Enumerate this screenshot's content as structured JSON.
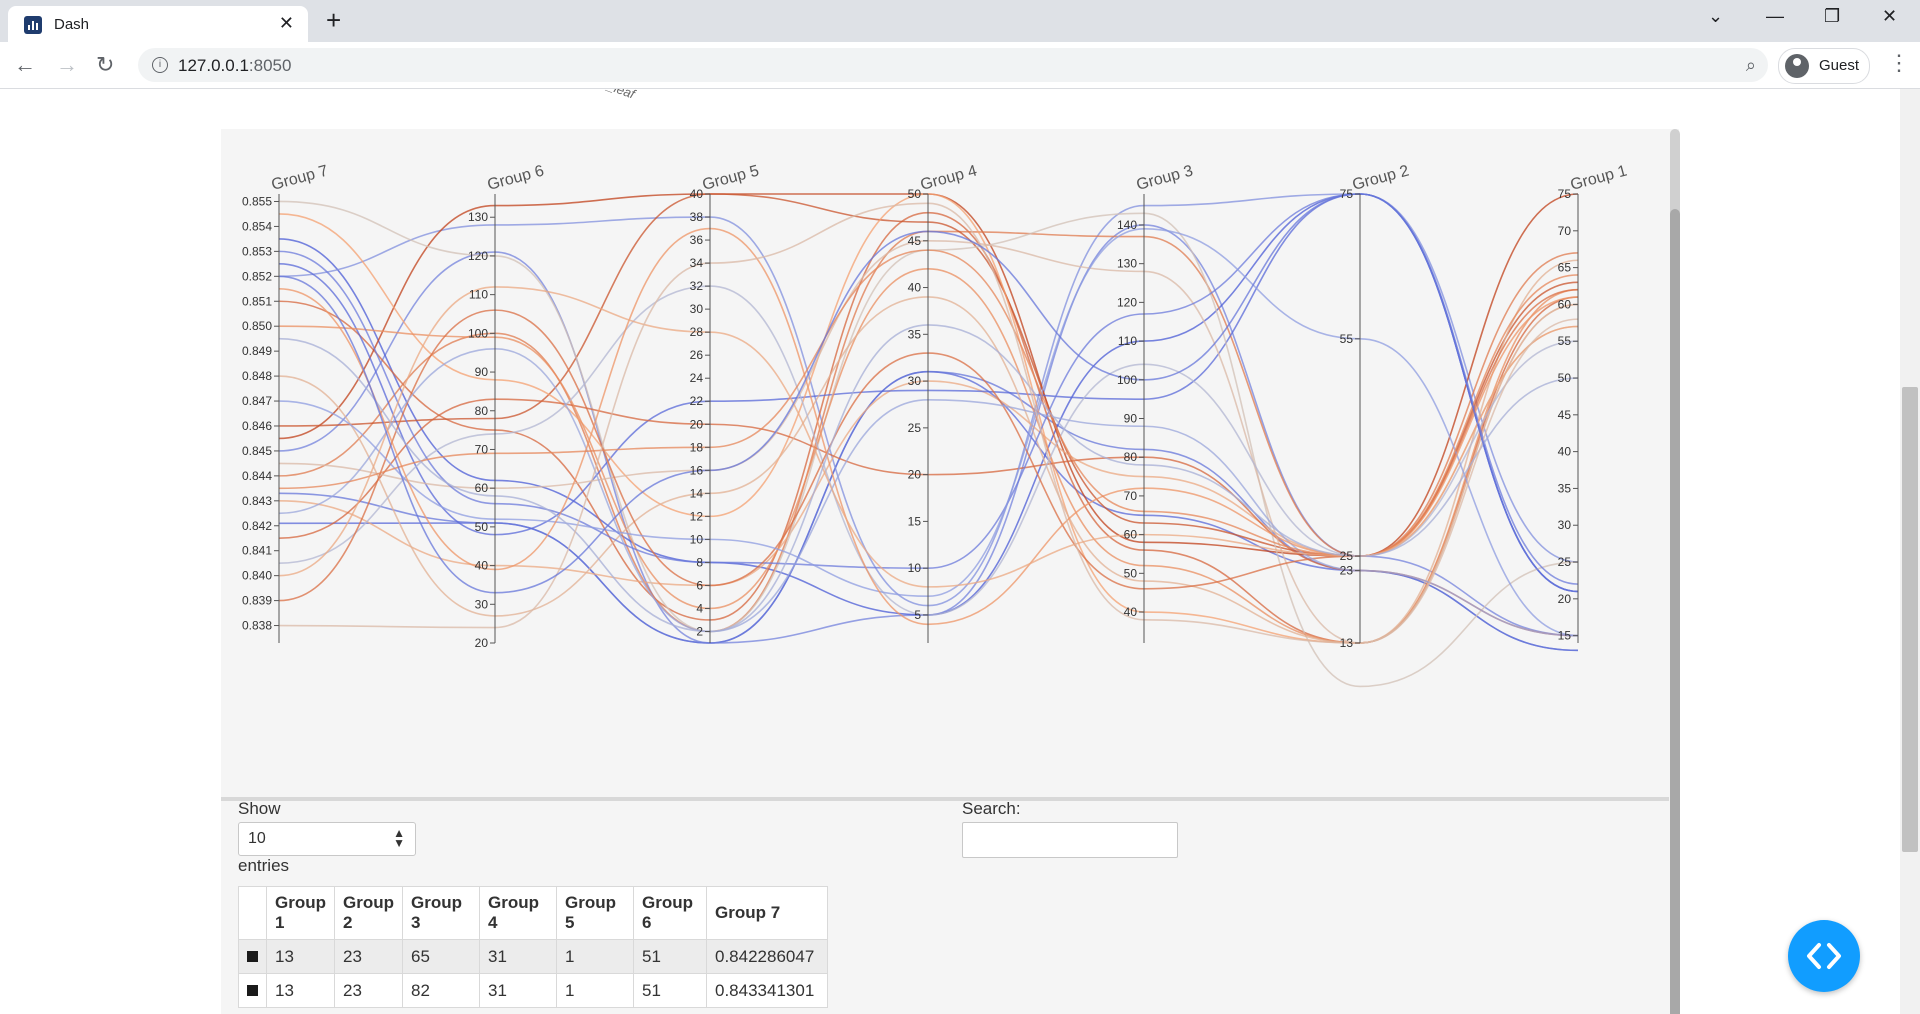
{
  "browser": {
    "tab_title": "Dash",
    "tab_close": "✕",
    "new_tab": "+",
    "url_host": "127.0.0.1",
    "url_port": ":8050",
    "profile_label": "Guest",
    "back": "←",
    "forward": "→",
    "reload": "↻",
    "minimize": "—",
    "restore": "❐",
    "close": "✕",
    "chevron": "⌄",
    "menu": "⋮",
    "zoom": "⌕"
  },
  "page": {
    "fragment_text": "n_leaf"
  },
  "chart_data": {
    "type": "parallel_coordinates",
    "axes": [
      {
        "name": "Group 7",
        "range": [
          0.8373,
          0.8553
        ],
        "ticks": [
          "0.855",
          "0.854",
          "0.853",
          "0.852",
          "0.851",
          "0.850",
          "0.849",
          "0.848",
          "0.847",
          "0.846",
          "0.845",
          "0.844",
          "0.843",
          "0.842",
          "0.841",
          "0.840",
          "0.839",
          "0.838"
        ],
        "tick_values": [
          0.855,
          0.854,
          0.853,
          0.852,
          0.851,
          0.85,
          0.849,
          0.848,
          0.847,
          0.846,
          0.845,
          0.844,
          0.843,
          0.842,
          0.841,
          0.84,
          0.839,
          0.838
        ]
      },
      {
        "name": "Group 6",
        "range": [
          20,
          136
        ],
        "ticks": [
          "130",
          "120",
          "110",
          "100",
          "90",
          "80",
          "70",
          "60",
          "50",
          "40",
          "30",
          "20"
        ],
        "tick_values": [
          130,
          120,
          110,
          100,
          90,
          80,
          70,
          60,
          50,
          40,
          30,
          20
        ]
      },
      {
        "name": "Group 5",
        "range": [
          1,
          40
        ],
        "ticks": [
          "40",
          "38",
          "36",
          "34",
          "32",
          "30",
          "28",
          "26",
          "24",
          "22",
          "20",
          "18",
          "16",
          "14",
          "12",
          "10",
          "8",
          "6",
          "4",
          "2"
        ],
        "tick_values": [
          40,
          38,
          36,
          34,
          32,
          30,
          28,
          26,
          24,
          22,
          20,
          18,
          16,
          14,
          12,
          10,
          8,
          6,
          4,
          2
        ]
      },
      {
        "name": "Group 4",
        "range": [
          2,
          50
        ],
        "ticks": [
          "50",
          "45",
          "40",
          "35",
          "30",
          "25",
          "20",
          "15",
          "10",
          "5"
        ],
        "tick_values": [
          50,
          45,
          40,
          35,
          30,
          25,
          20,
          15,
          10,
          5
        ]
      },
      {
        "name": "Group 3",
        "range": [
          32,
          148
        ],
        "ticks": [
          "140",
          "130",
          "120",
          "110",
          "100",
          "90",
          "80",
          "70",
          "60",
          "50",
          "40"
        ],
        "tick_values": [
          140,
          130,
          120,
          110,
          100,
          90,
          80,
          70,
          60,
          50,
          40
        ]
      },
      {
        "name": "Group 2",
        "range": [
          13,
          75
        ],
        "ticks": [
          "75",
          "55",
          "25",
          "23",
          "13"
        ],
        "tick_values": [
          75,
          55,
          25,
          23,
          13
        ]
      },
      {
        "name": "Group 1",
        "range": [
          14,
          75
        ],
        "ticks": [
          "75",
          "70",
          "65",
          "60",
          "55",
          "50",
          "45",
          "40",
          "35",
          "30",
          "25",
          "20",
          "15"
        ],
        "tick_values": [
          75,
          70,
          65,
          60,
          55,
          50,
          45,
          40,
          35,
          30,
          25,
          20,
          15
        ]
      }
    ],
    "colorscale": [
      "#4a5bd6",
      "#8e9ce0",
      "#c8c8c8",
      "#f4a070",
      "#c0401a"
    ],
    "lines": [
      [
        0.8421,
        51,
        1,
        31,
        65,
        23,
        13,
        0.05
      ],
      [
        0.8433,
        51,
        1,
        31,
        82,
        23,
        13,
        0.1
      ],
      [
        0.845,
        121,
        1,
        5,
        140,
        25,
        15,
        0.15
      ],
      [
        0.8535,
        62,
        8,
        5,
        110,
        75,
        21,
        0.0
      ],
      [
        0.852,
        128,
        38,
        6,
        145,
        75,
        25,
        0.2
      ],
      [
        0.851,
        75,
        3,
        48,
        56,
        13,
        61,
        0.9
      ],
      [
        0.8455,
        133,
        40,
        50,
        58,
        25,
        75,
        1.0
      ],
      [
        0.844,
        100,
        2,
        46,
        137,
        25,
        67,
        0.85
      ],
      [
        0.846,
        78,
        40,
        47,
        63,
        25,
        63,
        0.95
      ],
      [
        0.843,
        40,
        6,
        30,
        75,
        25,
        57,
        0.7
      ],
      [
        0.8525,
        48,
        22,
        29,
        95,
        75,
        21,
        0.05
      ],
      [
        0.8545,
        88,
        12,
        50,
        40,
        13,
        60,
        0.75
      ],
      [
        0.855,
        120,
        2,
        44,
        143,
        7,
        25,
        0.55
      ],
      [
        0.8415,
        83,
        20,
        20,
        80,
        23,
        15,
        0.9
      ],
      [
        0.85,
        99,
        4,
        42,
        52,
        13,
        62,
        0.8
      ],
      [
        0.848,
        27,
        14,
        39,
        48,
        13,
        66,
        0.65
      ],
      [
        0.8445,
        60,
        16,
        45,
        128,
        13,
        60,
        0.6
      ],
      [
        0.8405,
        74,
        32,
        5,
        104,
        25,
        55,
        0.4
      ],
      [
        0.853,
        56,
        8,
        10,
        117,
        75,
        22,
        0.12
      ],
      [
        0.839,
        106,
        6,
        33,
        46,
        25,
        62,
        0.88
      ],
      [
        0.8425,
        96,
        2,
        28,
        88,
        23,
        15,
        0.3
      ],
      [
        0.847,
        52,
        10,
        7,
        139,
        55,
        15,
        0.25
      ],
      [
        0.8515,
        39,
        37,
        4,
        72,
        25,
        61,
        0.78
      ],
      [
        0.8435,
        69,
        18,
        44,
        66,
        25,
        64,
        0.82
      ],
      [
        0.84,
        112,
        28,
        8,
        60,
        25,
        57,
        0.7
      ],
      [
        0.8495,
        58,
        2,
        36,
        78,
        25,
        50,
        0.35
      ],
      [
        0.838,
        24,
        34,
        49,
        38,
        13,
        58,
        0.6
      ],
      [
        0.852,
        33,
        16,
        46,
        100,
        75,
        21,
        0.1
      ]
    ]
  },
  "controls": {
    "show_label": "Show",
    "show_value": "10",
    "entries_label": "entries",
    "search_label": "Search:"
  },
  "table": {
    "headers": [
      "Group 1",
      "Group 2",
      "Group 3",
      "Group 4",
      "Group 5",
      "Group 6",
      "Group 7"
    ],
    "rows": [
      [
        "13",
        "23",
        "65",
        "31",
        "1",
        "51",
        "0.842286047"
      ],
      [
        "13",
        "23",
        "82",
        "31",
        "1",
        "51",
        "0.843341301"
      ]
    ]
  }
}
